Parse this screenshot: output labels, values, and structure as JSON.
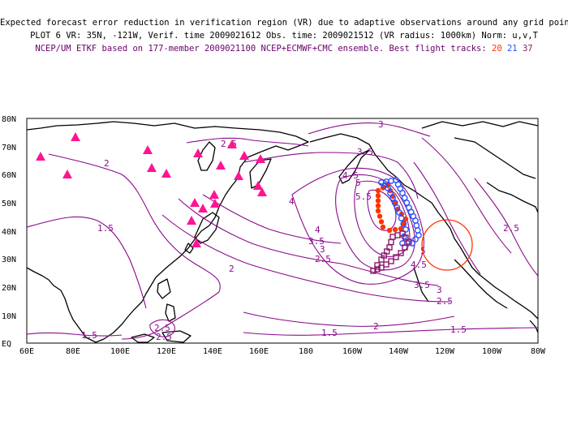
{
  "header": {
    "line1": "Expected forecast error reduction in verification region (VR) due to adaptive observations around any grid point.",
    "line2": "PLOT 6 VR: 35N, -121W, Verif. time 2009021612 Obs. time: 2009021512 (VR radius: 1000km) Norm: u,v,T",
    "line3": "NCEP/UM ETKF based on 177-member 2009021100 NCEP+ECMWF+CMC ensemble. Best flight tracks:",
    "flight_ids": [
      "20",
      "21",
      "37"
    ]
  },
  "colors": {
    "contour": "#8b0a8b",
    "track_20": "#ff3300",
    "track_21": "#2850ff",
    "track_37": "#8b1a6b",
    "triangle": "#ff1493",
    "vr_circle": "#ff3300",
    "coast": "#000000"
  },
  "axes": {
    "lat_labels": [
      "EQ",
      "10N",
      "20N",
      "30N",
      "40N",
      "50N",
      "60N",
      "70N",
      "80N"
    ],
    "lon_labels": [
      "60E",
      "80E",
      "100E",
      "120E",
      "140E",
      "160E",
      "180",
      "160W",
      "140W",
      "120W",
      "100W",
      "80W"
    ]
  },
  "contour_labels": [
    "3",
    "2.5",
    "2",
    "3.5",
    "4",
    "4.5",
    "5",
    "5.5",
    "1.5",
    "4",
    "3.5",
    "3",
    "2.5",
    "2",
    "2.5",
    "5",
    "4.5",
    "3.5",
    "3",
    "2.5",
    "1.5",
    "2",
    "1.5",
    "1.5",
    "2.5",
    "2.5"
  ],
  "verification_region": {
    "lat": 35,
    "lon": -121,
    "radius_km": 1000
  },
  "station_icon": "triangle-icon"
}
